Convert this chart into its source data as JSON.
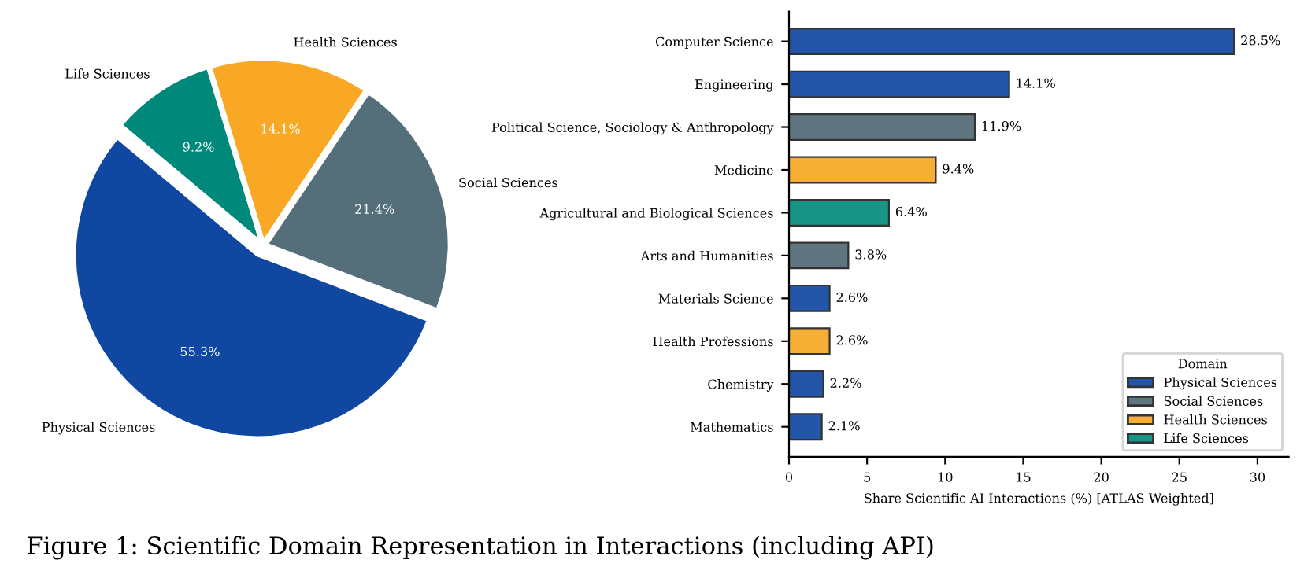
{
  "chart_data": [
    {
      "type": "pie",
      "categories": [
        "Physical Sciences",
        "Social Sciences",
        "Health Sciences",
        "Life Sciences"
      ],
      "values": [
        55.3,
        21.4,
        14.1,
        9.2
      ],
      "colors": [
        "#0f47a1",
        "#546e7a",
        "#f9a825",
        "#00897b"
      ],
      "value_labels": [
        "55.3%",
        "21.4%",
        "14.1%",
        "9.2%"
      ],
      "annotations": [
        "Figure 1: Scientific Domain Representation in Interactions (including API)"
      ]
    },
    {
      "type": "bar",
      "orientation": "horizontal",
      "categories": [
        "Computer Science",
        "Engineering",
        "Political Science, Sociology & Anthropology",
        "Medicine",
        "Agricultural and Biological Sciences",
        "Arts and Humanities",
        "Materials Science",
        "Health Professions",
        "Chemistry",
        "Mathematics"
      ],
      "series": [
        {
          "name": "Physical Sciences",
          "color": "#2356a8",
          "values": [
            28.5,
            14.1,
            null,
            null,
            null,
            null,
            2.6,
            null,
            2.2,
            2.1
          ],
          "value_labels": [
            "28.5%",
            "14.1%",
            null,
            null,
            null,
            null,
            "2.6%",
            null,
            "2.2%",
            "2.1%"
          ]
        },
        {
          "name": "Social Sciences",
          "color": "#5f7680",
          "values": [
            null,
            null,
            11.9,
            null,
            null,
            3.8,
            null,
            null,
            null,
            null
          ],
          "value_labels": [
            null,
            null,
            "11.9%",
            null,
            null,
            "3.8%",
            null,
            null,
            null,
            null
          ]
        },
        {
          "name": "Health Sciences",
          "color": "#f6ae35",
          "values": [
            null,
            null,
            null,
            9.4,
            null,
            null,
            null,
            2.6,
            null,
            null
          ],
          "value_labels": [
            null,
            null,
            null,
            "9.4%",
            null,
            null,
            null,
            "2.6%",
            null,
            null
          ]
        },
        {
          "name": "Life Sciences",
          "color": "#179585",
          "values": [
            null,
            null,
            null,
            null,
            6.4,
            null,
            null,
            null,
            null,
            null
          ],
          "value_labels": [
            null,
            null,
            null,
            null,
            "6.4%",
            null,
            null,
            null,
            null,
            null
          ]
        }
      ],
      "xlim": [
        0,
        32
      ],
      "xticks": [
        0,
        5,
        10,
        15,
        20,
        25,
        30
      ],
      "xlabel": "Share Scientific AI Interactions (%) [ATLAS Weighted]",
      "legend": "bottom right",
      "legend_title": "Domain",
      "grid": false
    }
  ]
}
